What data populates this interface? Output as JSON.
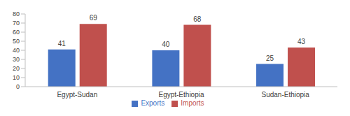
{
  "chart_data": {
    "type": "bar",
    "categories": [
      "Egypt-Sudan",
      "Egypt-Ethiopia",
      "Sudan-Ethiopia"
    ],
    "series": [
      {
        "name": "Exports",
        "color": "#4472c4",
        "values": [
          41,
          40,
          25
        ]
      },
      {
        "name": "Imports",
        "color": "#c0504d",
        "values": [
          69,
          68,
          43
        ]
      }
    ],
    "ylim": [
      0,
      80
    ],
    "yticks": [
      0,
      10,
      20,
      30,
      40,
      50,
      60,
      70,
      80
    ],
    "grid": false,
    "legend": "bottom",
    "data_labels": true
  }
}
